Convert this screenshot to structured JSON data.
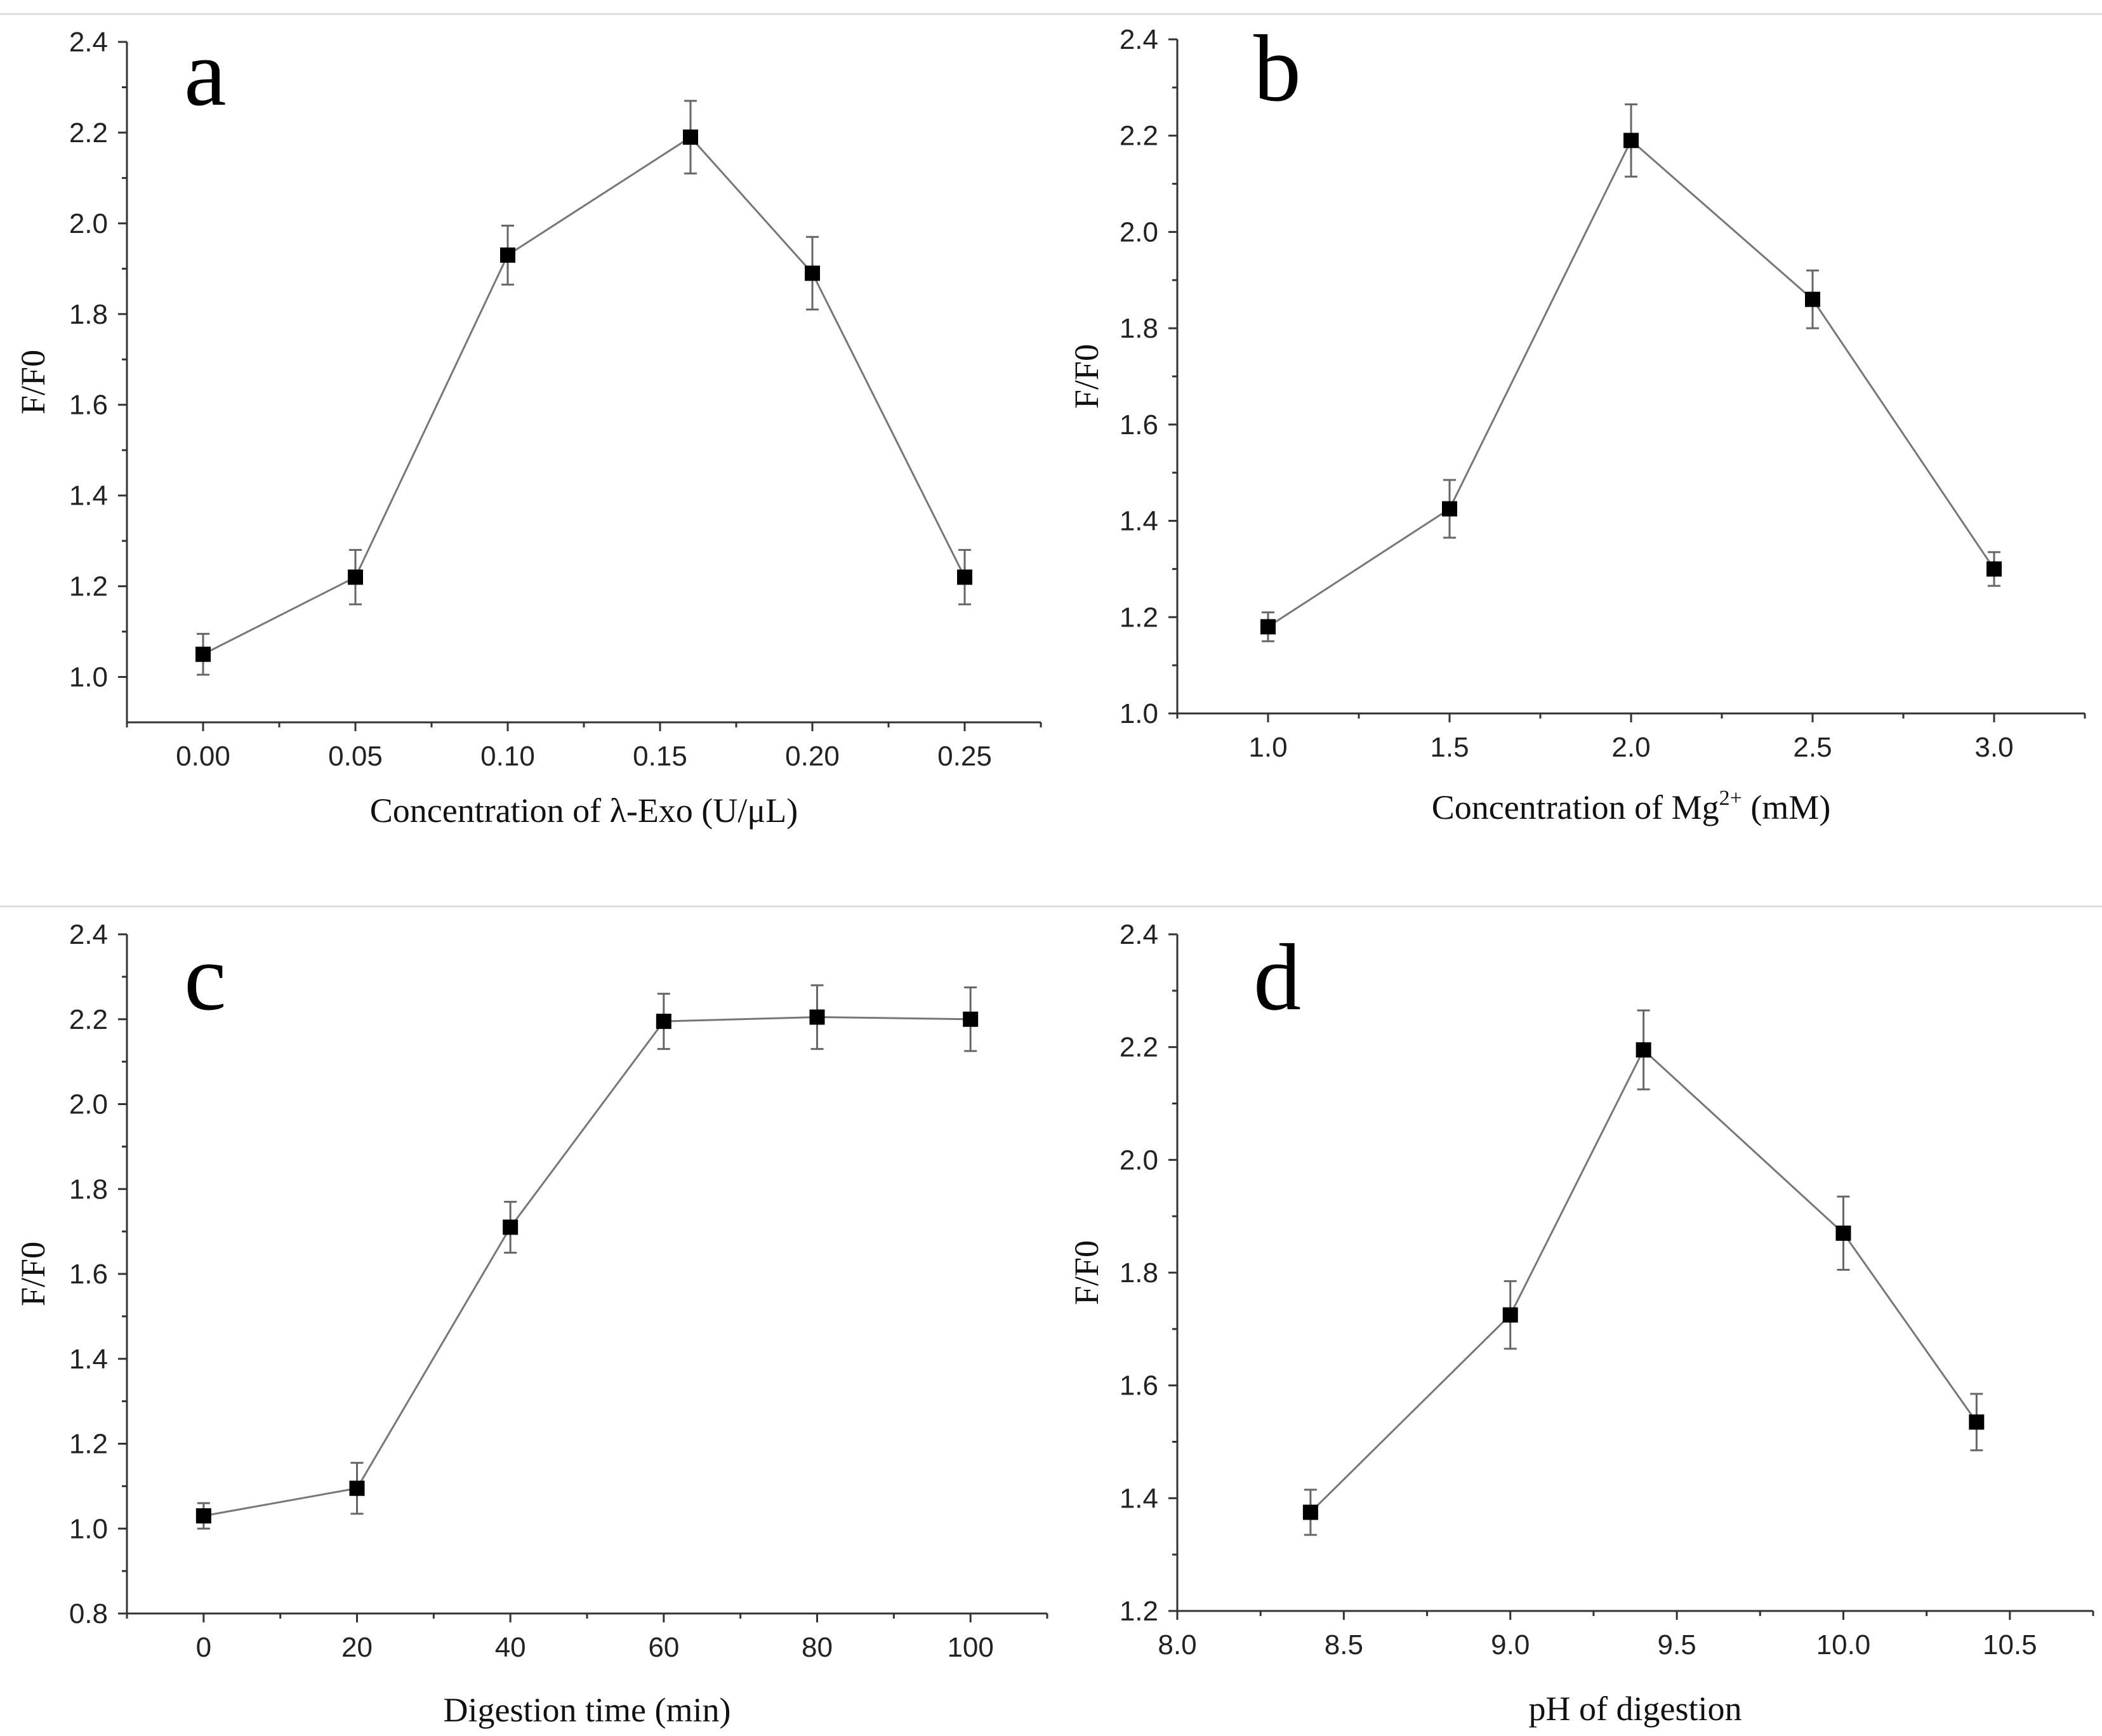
{
  "chart_data": [
    {
      "id": "a",
      "type": "line",
      "panel_label": "a",
      "x": [
        0.0,
        0.05,
        0.1,
        0.16,
        0.2,
        0.25
      ],
      "values": [
        1.05,
        1.22,
        1.93,
        2.19,
        1.89,
        1.22
      ],
      "errors": [
        0.045,
        0.06,
        0.065,
        0.08,
        0.08,
        0.06
      ],
      "xlim": [
        -0.025,
        0.275
      ],
      "ylim": [
        0.9,
        2.4
      ],
      "xticks": [
        0.0,
        0.05,
        0.1,
        0.15,
        0.2,
        0.25
      ],
      "xtick_labels": [
        "0.00",
        "0.05",
        "0.10",
        "0.15",
        "0.20",
        "0.25"
      ],
      "yticks": [
        1.0,
        1.2,
        1.4,
        1.6,
        1.8,
        2.0,
        2.2,
        2.4
      ],
      "ytick_labels": [
        "1.0",
        "1.2",
        "1.4",
        "1.6",
        "1.8",
        "2.0",
        "2.2",
        "2.4"
      ],
      "xlabel": "Concentration of λ-Exo (U/μL)",
      "xlabel_sup": "",
      "xlabel_after": "",
      "ylabel": "F/F0"
    },
    {
      "id": "b",
      "type": "line",
      "panel_label": "b",
      "x": [
        1.0,
        1.5,
        2.0,
        2.5,
        3.0
      ],
      "values": [
        1.18,
        1.425,
        2.19,
        1.86,
        1.3
      ],
      "errors": [
        0.03,
        0.06,
        0.075,
        0.06,
        0.035
      ],
      "xlim": [
        0.75,
        3.25
      ],
      "ylim": [
        1.0,
        2.4
      ],
      "xticks": [
        1.0,
        1.5,
        2.0,
        2.5,
        3.0
      ],
      "xtick_labels": [
        "1.0",
        "1.5",
        "2.0",
        "2.5",
        "3.0"
      ],
      "yticks": [
        1.0,
        1.2,
        1.4,
        1.6,
        1.8,
        2.0,
        2.2,
        2.4
      ],
      "ytick_labels": [
        "1.0",
        "1.2",
        "1.4",
        "1.6",
        "1.8",
        "2.0",
        "2.2",
        "2.4"
      ],
      "xlabel": "Concentration of Mg",
      "xlabel_sup": "2+",
      "xlabel_after": " (mM)",
      "ylabel": "F/F0"
    },
    {
      "id": "c",
      "type": "line",
      "panel_label": "c",
      "x": [
        0,
        20,
        40,
        60,
        80,
        100
      ],
      "values": [
        1.03,
        1.095,
        1.71,
        2.195,
        2.205,
        2.2
      ],
      "errors": [
        0.03,
        0.06,
        0.06,
        0.065,
        0.075,
        0.075
      ],
      "xlim": [
        -10,
        110
      ],
      "ylim": [
        0.8,
        2.4
      ],
      "xticks": [
        0,
        20,
        40,
        60,
        80,
        100
      ],
      "xtick_labels": [
        "0",
        "20",
        "40",
        "60",
        "80",
        "100"
      ],
      "yticks": [
        0.8,
        1.0,
        1.2,
        1.4,
        1.6,
        1.8,
        2.0,
        2.2,
        2.4
      ],
      "ytick_labels": [
        "0.8",
        "1.0",
        "1.2",
        "1.4",
        "1.6",
        "1.8",
        "2.0",
        "2.2",
        "2.4"
      ],
      "xlabel": "Digestion time (min)",
      "xlabel_sup": "",
      "xlabel_after": "",
      "ylabel": "F/F0"
    },
    {
      "id": "d",
      "type": "line",
      "panel_label": "d",
      "x": [
        8.4,
        9.0,
        9.4,
        10.0,
        10.4
      ],
      "values": [
        1.375,
        1.725,
        2.195,
        1.87,
        1.535
      ],
      "errors": [
        0.04,
        0.06,
        0.07,
        0.065,
        0.05
      ],
      "xlim": [
        8.0,
        10.75
      ],
      "ylim": [
        1.2,
        2.4
      ],
      "xticks": [
        8.0,
        8.5,
        9.0,
        9.5,
        10.0,
        10.5
      ],
      "xtick_labels": [
        "8.0",
        "8.5",
        "9.0",
        "9.5",
        "10.0",
        "10.5"
      ],
      "yticks": [
        1.2,
        1.4,
        1.6,
        1.8,
        2.0,
        2.2,
        2.4
      ],
      "ytick_labels": [
        "1.2",
        "1.4",
        "1.6",
        "1.8",
        "2.0",
        "2.2",
        "2.4"
      ],
      "xlabel": "pH of digestion",
      "xlabel_sup": "",
      "xlabel_after": "",
      "ylabel": "F/F0"
    }
  ]
}
